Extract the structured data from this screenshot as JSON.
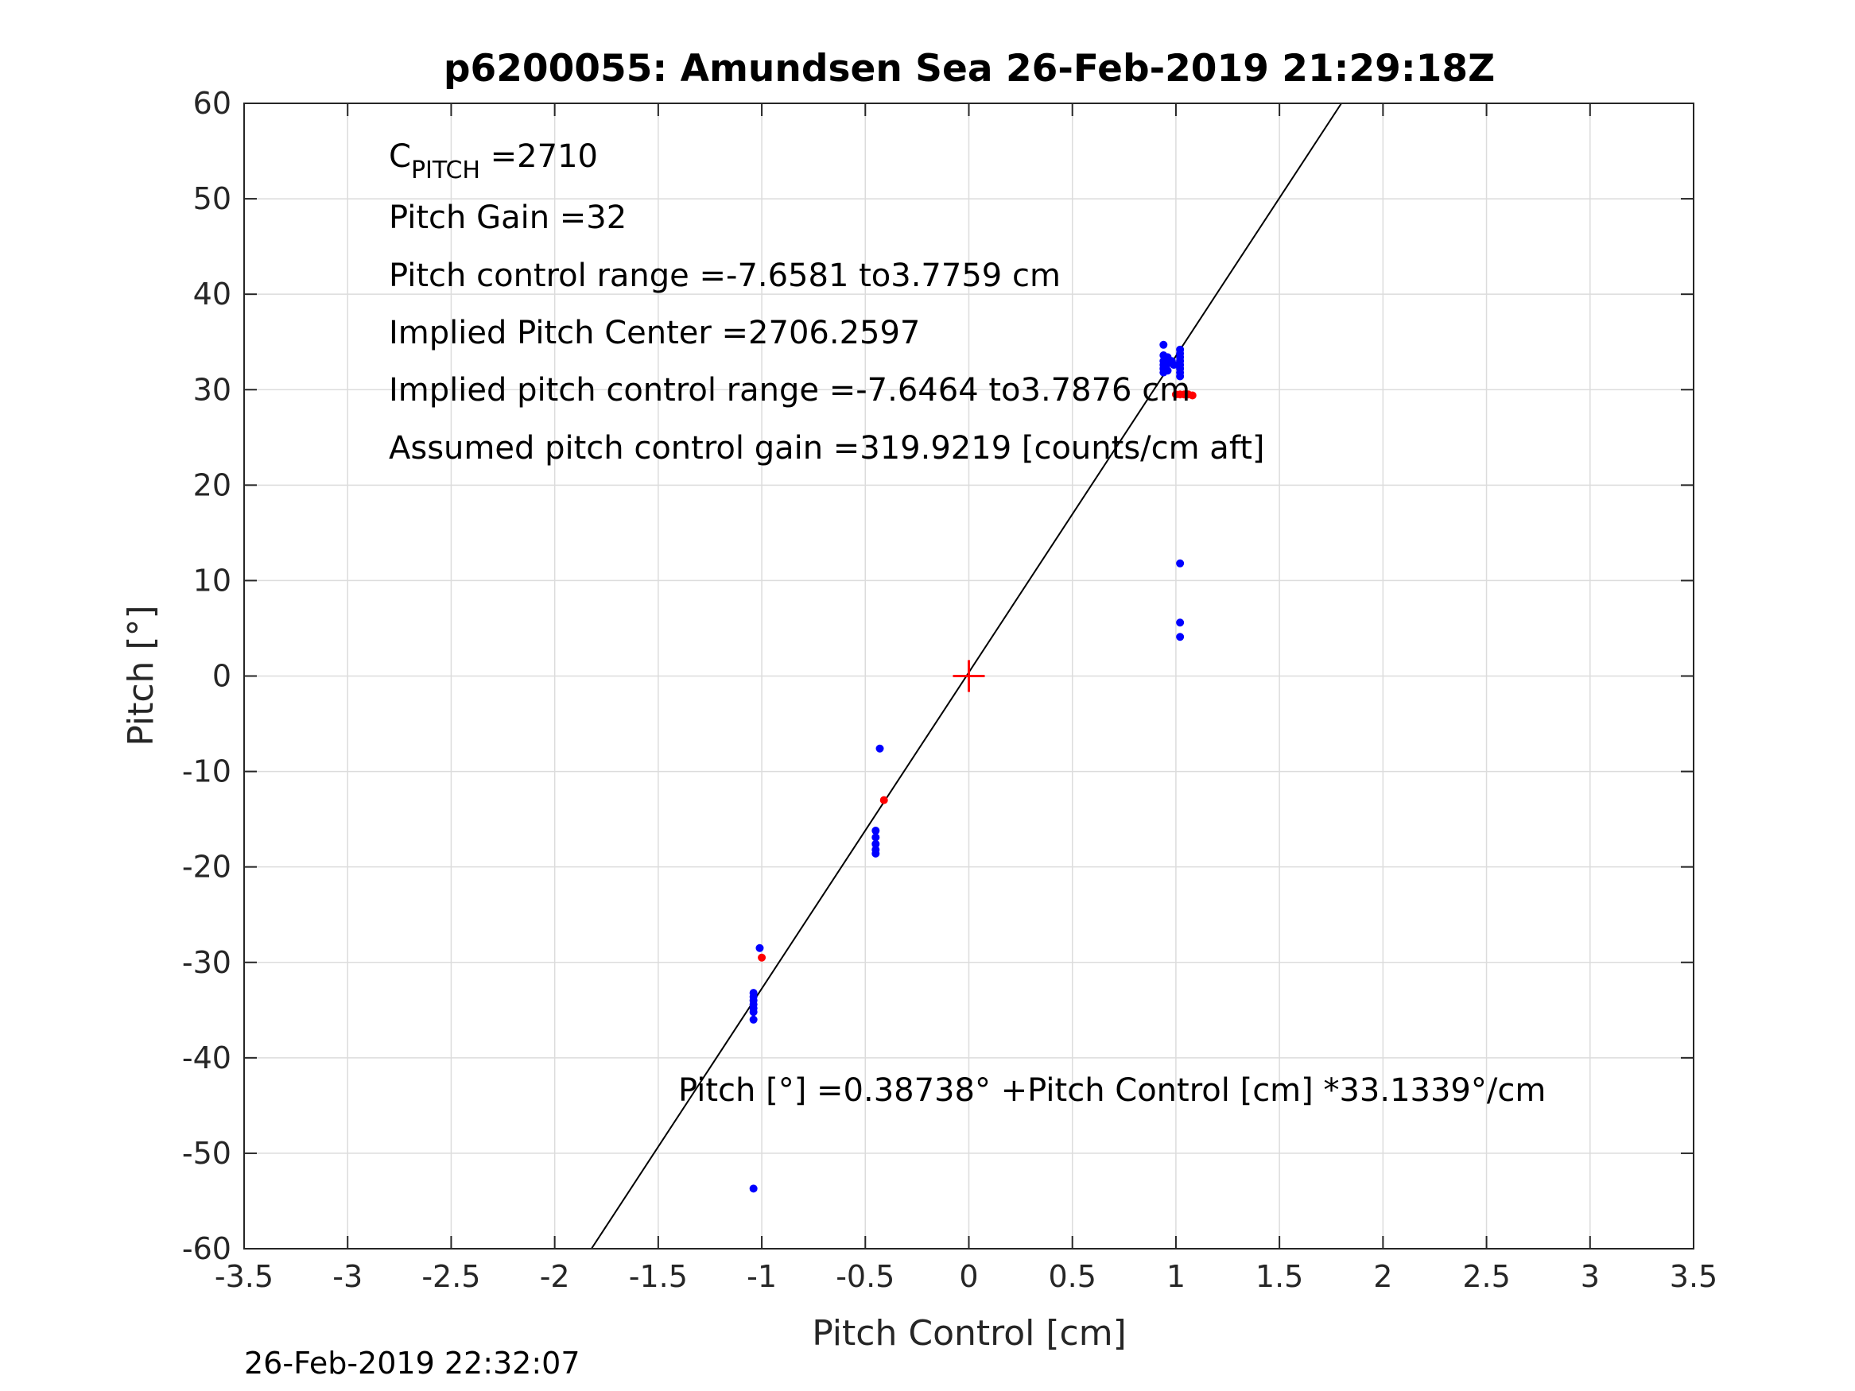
{
  "chart_data": {
    "type": "scatter",
    "title": "p6200055: Amundsen Sea 26-Feb-2019 21:29:18Z",
    "xlabel": "Pitch Control [cm]",
    "ylabel": "Pitch [°]",
    "xlim": [
      -3.5,
      3.5
    ],
    "ylim": [
      -60,
      60
    ],
    "xticks": [
      -3.5,
      -3,
      -2.5,
      -2,
      -1.5,
      -1,
      -0.5,
      0,
      0.5,
      1,
      1.5,
      2,
      2.5,
      3,
      3.5
    ],
    "yticks": [
      -60,
      -50,
      -40,
      -30,
      -20,
      -10,
      0,
      10,
      20,
      30,
      40,
      50,
      60
    ],
    "grid": true,
    "series": [
      {
        "marker": "dot",
        "color": "#0000ff",
        "points": [
          [
            0.94,
            34.7
          ],
          [
            0.94,
            33.6
          ],
          [
            0.94,
            33.0
          ],
          [
            0.94,
            32.6
          ],
          [
            0.94,
            32.2
          ],
          [
            0.94,
            31.8
          ],
          [
            0.95,
            33.2
          ],
          [
            0.95,
            32.4
          ],
          [
            0.96,
            33.4
          ],
          [
            0.96,
            32.0
          ],
          [
            0.97,
            32.8
          ],
          [
            0.98,
            33.0
          ],
          [
            0.99,
            32.6
          ],
          [
            1.02,
            34.2
          ],
          [
            1.02,
            33.8
          ],
          [
            1.02,
            33.4
          ],
          [
            1.02,
            33.0
          ],
          [
            1.02,
            32.6
          ],
          [
            1.02,
            32.2
          ],
          [
            1.02,
            31.8
          ],
          [
            1.02,
            31.4
          ],
          [
            1.02,
            11.8
          ],
          [
            1.02,
            5.6
          ],
          [
            1.02,
            4.1
          ],
          [
            -0.43,
            -7.6
          ],
          [
            -0.45,
            -16.2
          ],
          [
            -0.45,
            -16.9
          ],
          [
            -0.45,
            -17.6
          ],
          [
            -0.45,
            -18.2
          ],
          [
            -0.45,
            -18.6
          ],
          [
            -1.01,
            -28.5
          ],
          [
            -1.04,
            -33.2
          ],
          [
            -1.04,
            -33.6
          ],
          [
            -1.04,
            -34.0
          ],
          [
            -1.04,
            -34.4
          ],
          [
            -1.04,
            -34.8
          ],
          [
            -1.04,
            -35.2
          ],
          [
            -1.04,
            -36.0
          ],
          [
            -1.04,
            -53.7
          ]
        ]
      },
      {
        "marker": "dot",
        "color": "#ff0000",
        "points": [
          [
            1.0,
            29.5
          ],
          [
            1.02,
            29.5
          ],
          [
            1.04,
            29.5
          ],
          [
            1.06,
            29.5
          ],
          [
            1.08,
            29.4
          ],
          [
            -0.41,
            -13.0
          ],
          [
            -1.0,
            -29.5
          ]
        ]
      }
    ],
    "center_marker": {
      "x": 0,
      "y": 0,
      "color": "#ff0000",
      "shape": "plus"
    },
    "fit_line": {
      "intercept": 0.38738,
      "slope": 33.1339,
      "color": "#000000"
    },
    "annotations": [
      "Pitch Gain =32",
      "Pitch control range =-7.6581 to3.7759 cm",
      "Implied Pitch Center =2706.2597",
      "Implied pitch control range =-7.6464 to3.7876 cm",
      "Assumed pitch control gain =319.9219 [counts/cm aft]"
    ],
    "cpitch": {
      "base": "C",
      "sub": "PITCH",
      "value": " =2710"
    },
    "equation": "Pitch [°] =0.38738° +Pitch Control [cm] *33.1339°/cm",
    "timestamp": "26-Feb-2019 22:32:07"
  }
}
